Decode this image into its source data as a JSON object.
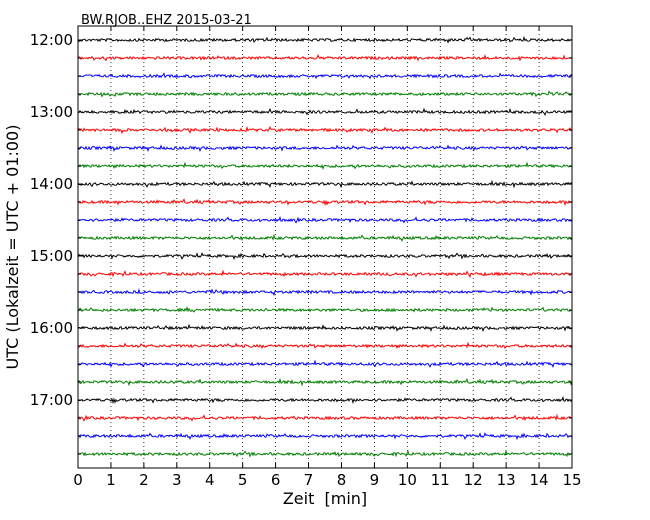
{
  "chart_data": {
    "type": "line",
    "title": "BW.RJOB..EHZ 2015-03-21",
    "xlabel": "Zeit  [min]",
    "ylabel": "UTC (Lokalzeit = UTC + 01:00)",
    "xlim": [
      0,
      15
    ],
    "x_ticks": [
      "0",
      "1",
      "2",
      "3",
      "4",
      "5",
      "6",
      "7",
      "8",
      "9",
      "10",
      "11",
      "12",
      "13",
      "14",
      "15"
    ],
    "y_ticks": [
      "12:00",
      "13:00",
      "14:00",
      "15:00",
      "16:00",
      "17:00"
    ],
    "grid": "vertical dotted",
    "trace_count": 24,
    "trace_interval_min": 15,
    "start_time": "12:00",
    "trace_colors": [
      "#000000",
      "#ff0000",
      "#0000ff",
      "#007f00"
    ]
  }
}
